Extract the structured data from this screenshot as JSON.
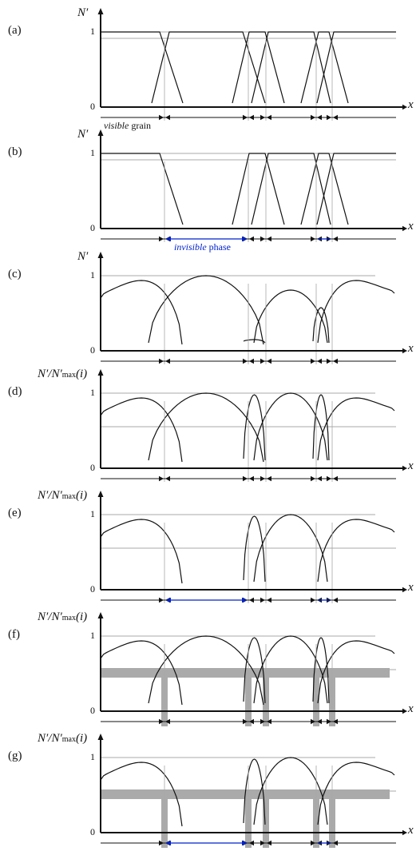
{
  "panels": [
    {
      "id": "a",
      "label": "(a)",
      "ylabel_main": "N′",
      "ylabel_sub": "",
      "ylabel_arg": "",
      "tick_one": "1",
      "tick_zero": "0",
      "xlabel": "x",
      "note": {
        "italic": "visible",
        "plain": " grain",
        "color": "black"
      },
      "bands": false,
      "curve_style": "trapezoid"
    },
    {
      "id": "b",
      "label": "(b)",
      "ylabel_main": "N′",
      "ylabel_sub": "",
      "ylabel_arg": "",
      "tick_one": "1",
      "tick_zero": "0",
      "xlabel": "x",
      "note": {
        "italic": "invisible",
        "plain": " phase",
        "color": "blue"
      },
      "bands": false,
      "curve_style": "trapezoid"
    },
    {
      "id": "c",
      "label": "(c)",
      "ylabel_main": "N′",
      "ylabel_sub": "",
      "ylabel_arg": "",
      "tick_one": "1",
      "tick_zero": "0",
      "xlabel": "x",
      "bands": false,
      "curve_style": "smooth"
    },
    {
      "id": "d",
      "label": "(d)",
      "ylabel_main": "N′/N′",
      "ylabel_sub": "max",
      "ylabel_arg": "(i)",
      "tick_one": "1",
      "tick_zero": "0",
      "xlabel": "x",
      "bands": false,
      "curve_style": "smooth-normalized"
    },
    {
      "id": "e",
      "label": "(e)",
      "ylabel_main": "N′/N′",
      "ylabel_sub": "max",
      "ylabel_arg": "(i)",
      "tick_one": "1",
      "tick_zero": "0",
      "xlabel": "x",
      "bands": false,
      "curve_style": "smooth-normalized"
    },
    {
      "id": "f",
      "label": "(f)",
      "ylabel_main": "N′/N′",
      "ylabel_sub": "max",
      "ylabel_arg": "(i)",
      "tick_one": "1",
      "tick_zero": "0",
      "xlabel": "x",
      "bands": true,
      "curve_style": "smooth-normalized"
    },
    {
      "id": "g",
      "label": "(g)",
      "ylabel_main": "N′/N′",
      "ylabel_sub": "max",
      "ylabel_arg": "(i)",
      "tick_one": "1",
      "tick_zero": "0",
      "xlabel": "x",
      "bands": true,
      "curve_style": "smooth-normalized"
    }
  ],
  "colors": {
    "ink": "#111111",
    "threshold_line": "#a8a8a8",
    "band": "#aaaaaa",
    "invisible_arrow": "#0022cc"
  }
}
